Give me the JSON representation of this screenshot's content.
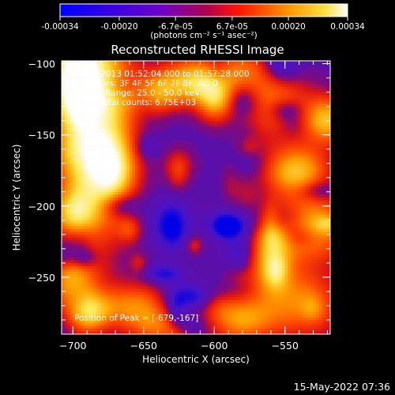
{
  "colorbar": {
    "ticks": [
      "-0.00034",
      "-0.00020",
      "-6.7e-05",
      "6.7e-05",
      "0.00020",
      "0.00034"
    ],
    "tick_values": [
      -0.00034,
      -0.0002,
      -6.7e-05,
      6.7e-05,
      0.0002,
      0.00034
    ],
    "range": [
      -0.00034,
      0.00034
    ],
    "units_label": "(photons cm⁻² s⁻¹ asec⁻²)"
  },
  "title": "Reconstructed RHESSI Image",
  "info_lines": [
    "15-Jul-2013 01:52:04.000 to 01:57:28.000",
    "Detectors: 3F 4F 5F 6F 7F 8F, Att 0",
    "Energy Range: 25.0 - 50.0 keV",
    "Clean    Total counts: 6.75E+03"
  ],
  "peak_label": "Position of Peak = [-679,-167]",
  "footer_timestamp": "15-May-2022 07:36",
  "chart_data": {
    "type": "heatmap",
    "title": "Reconstructed RHESSI Image",
    "xlabel": "Heliocentric X (arcsec)",
    "ylabel": "Heliocentric Y (arcsec)",
    "xlim": [
      -708,
      -518
    ],
    "ylim": [
      -290,
      -98
    ],
    "x_ticks": [
      -700,
      -650,
      -600,
      -550
    ],
    "y_ticks": [
      -100,
      -150,
      -200,
      -250
    ],
    "x_tick_labels": [
      "−700",
      "−650",
      "−600",
      "−550"
    ],
    "y_tick_labels": [
      "−100",
      "−150",
      "−200",
      "−250"
    ],
    "peak": [
      -679,
      -167
    ],
    "colormap": [
      "#0000ff",
      "#5e0fb4",
      "#ff2000",
      "#ff9400",
      "#ffffff"
    ]
  }
}
